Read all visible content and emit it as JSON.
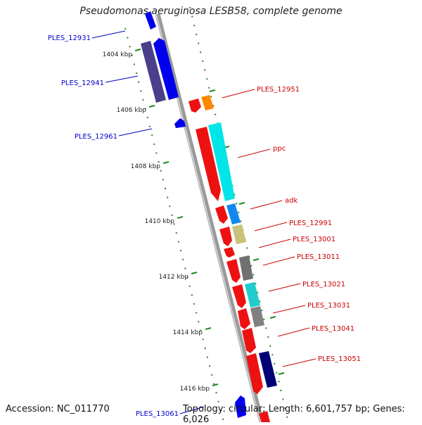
{
  "title": "Pseudomonas aeruginosa LESB58, complete genome",
  "footer": {
    "accession": "Accession: NC_011770",
    "topology": "Topology: circular; Length: 6,601,757 bp; Genes: 6,026"
  },
  "colors": {
    "forward": "#ee1111",
    "reverse_blue": "#0000ee",
    "label_blue": "#0000cc",
    "label_red": "#cc0000",
    "axis": "#888888",
    "tick": "#228822"
  },
  "ticks": [
    {
      "label": "1404 kbp"
    },
    {
      "label": "1406 kbp"
    },
    {
      "label": "1408 kbp"
    },
    {
      "label": "1410 kbp"
    },
    {
      "label": "1412 kbp"
    },
    {
      "label": "1414 kbp"
    },
    {
      "label": "1416 kbp"
    }
  ],
  "genes": [
    {
      "name": "PLES_12931",
      "side": "left",
      "color": "#0000ee"
    },
    {
      "name": "PLES_12941",
      "side": "left",
      "color": "#0000ee"
    },
    {
      "name": "PLES_12961",
      "side": "left",
      "color": "#0000ee"
    },
    {
      "name": "PLES_13061",
      "side": "left",
      "color": "#0000ee"
    },
    {
      "name": "PLES_12951",
      "side": "right",
      "color": "#ee1111"
    },
    {
      "name": "ppc",
      "side": "right",
      "color": "#ee1111"
    },
    {
      "name": "adk",
      "side": "right",
      "color": "#ee1111"
    },
    {
      "name": "PLES_12991",
      "side": "right",
      "color": "#ee1111"
    },
    {
      "name": "PLES_13001",
      "side": "right",
      "color": "#ee1111"
    },
    {
      "name": "PLES_13011",
      "side": "right",
      "color": "#ee1111"
    },
    {
      "name": "PLES_13021",
      "side": "right",
      "color": "#ee1111"
    },
    {
      "name": "PLES_13031",
      "side": "right",
      "color": "#ee1111"
    },
    {
      "name": "PLES_13041",
      "side": "right",
      "color": "#ee1111"
    },
    {
      "name": "PLES_13051",
      "side": "right",
      "color": "#ee1111"
    }
  ]
}
